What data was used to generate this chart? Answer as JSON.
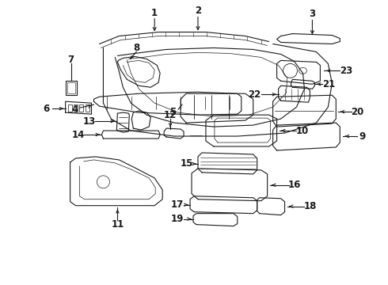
{
  "bg_color": "#ffffff",
  "line_color": "#1a1a1a",
  "text_color": "#1a1a1a",
  "fig_width": 4.9,
  "fig_height": 3.6,
  "dpi": 100,
  "label_fs": 8.5,
  "lw": 0.8
}
